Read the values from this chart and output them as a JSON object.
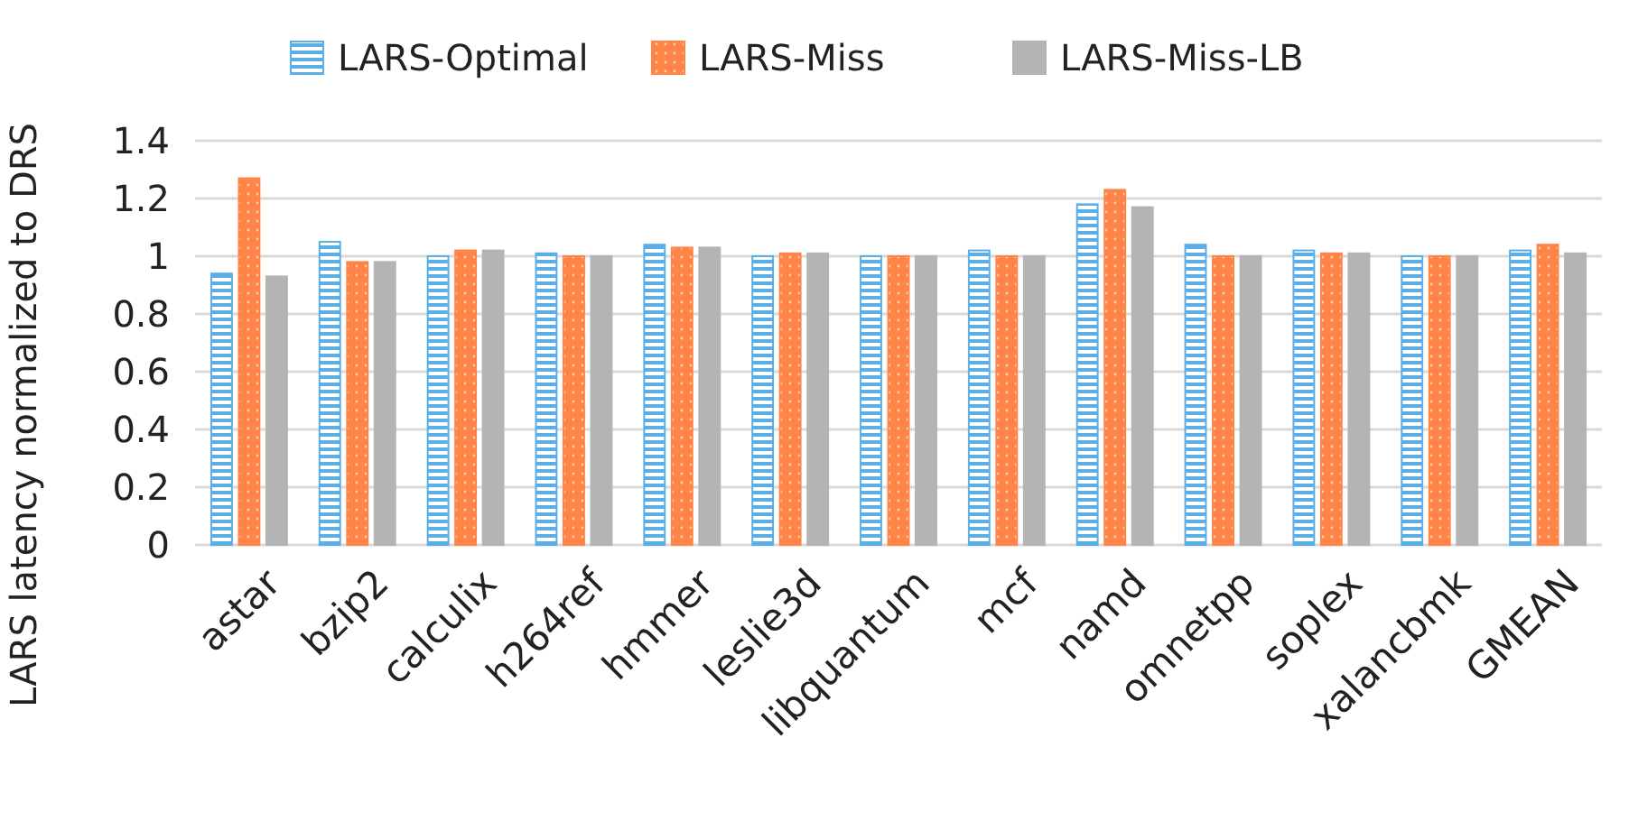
{
  "chart_data": {
    "type": "bar",
    "ylabel": "LARS latency normalized to DRS",
    "categories": [
      "astar",
      "bzip2",
      "calculix",
      "h264ref",
      "hmmer",
      "leslie3d",
      "libquantum",
      "mcf",
      "namd",
      "omnetpp",
      "soplex",
      "xalancbmk",
      "GMEAN"
    ],
    "series": [
      {
        "name": "LARS-Optimal",
        "color": "#5ab0e6",
        "values": [
          0.94,
          1.05,
          1.0,
          1.01,
          1.04,
          1.0,
          1.0,
          1.02,
          1.18,
          1.04,
          1.02,
          1.0,
          1.02
        ]
      },
      {
        "name": "LARS-Miss",
        "color": "#ff8447",
        "values": [
          1.27,
          0.98,
          1.02,
          1.0,
          1.03,
          1.01,
          1.0,
          1.0,
          1.23,
          1.0,
          1.01,
          1.0,
          1.04
        ]
      },
      {
        "name": "LARS-Miss-LB",
        "color": "#b4b4b4",
        "values": [
          0.93,
          0.98,
          1.02,
          1.0,
          1.03,
          1.01,
          1.0,
          1.0,
          1.17,
          1.0,
          1.01,
          1.0,
          1.01
        ]
      }
    ],
    "ylim": [
      0,
      1.4
    ],
    "yticks": [
      0,
      0.2,
      0.4,
      0.6,
      0.8,
      1,
      1.2,
      1.4
    ],
    "grid": "y",
    "legend": "top"
  }
}
